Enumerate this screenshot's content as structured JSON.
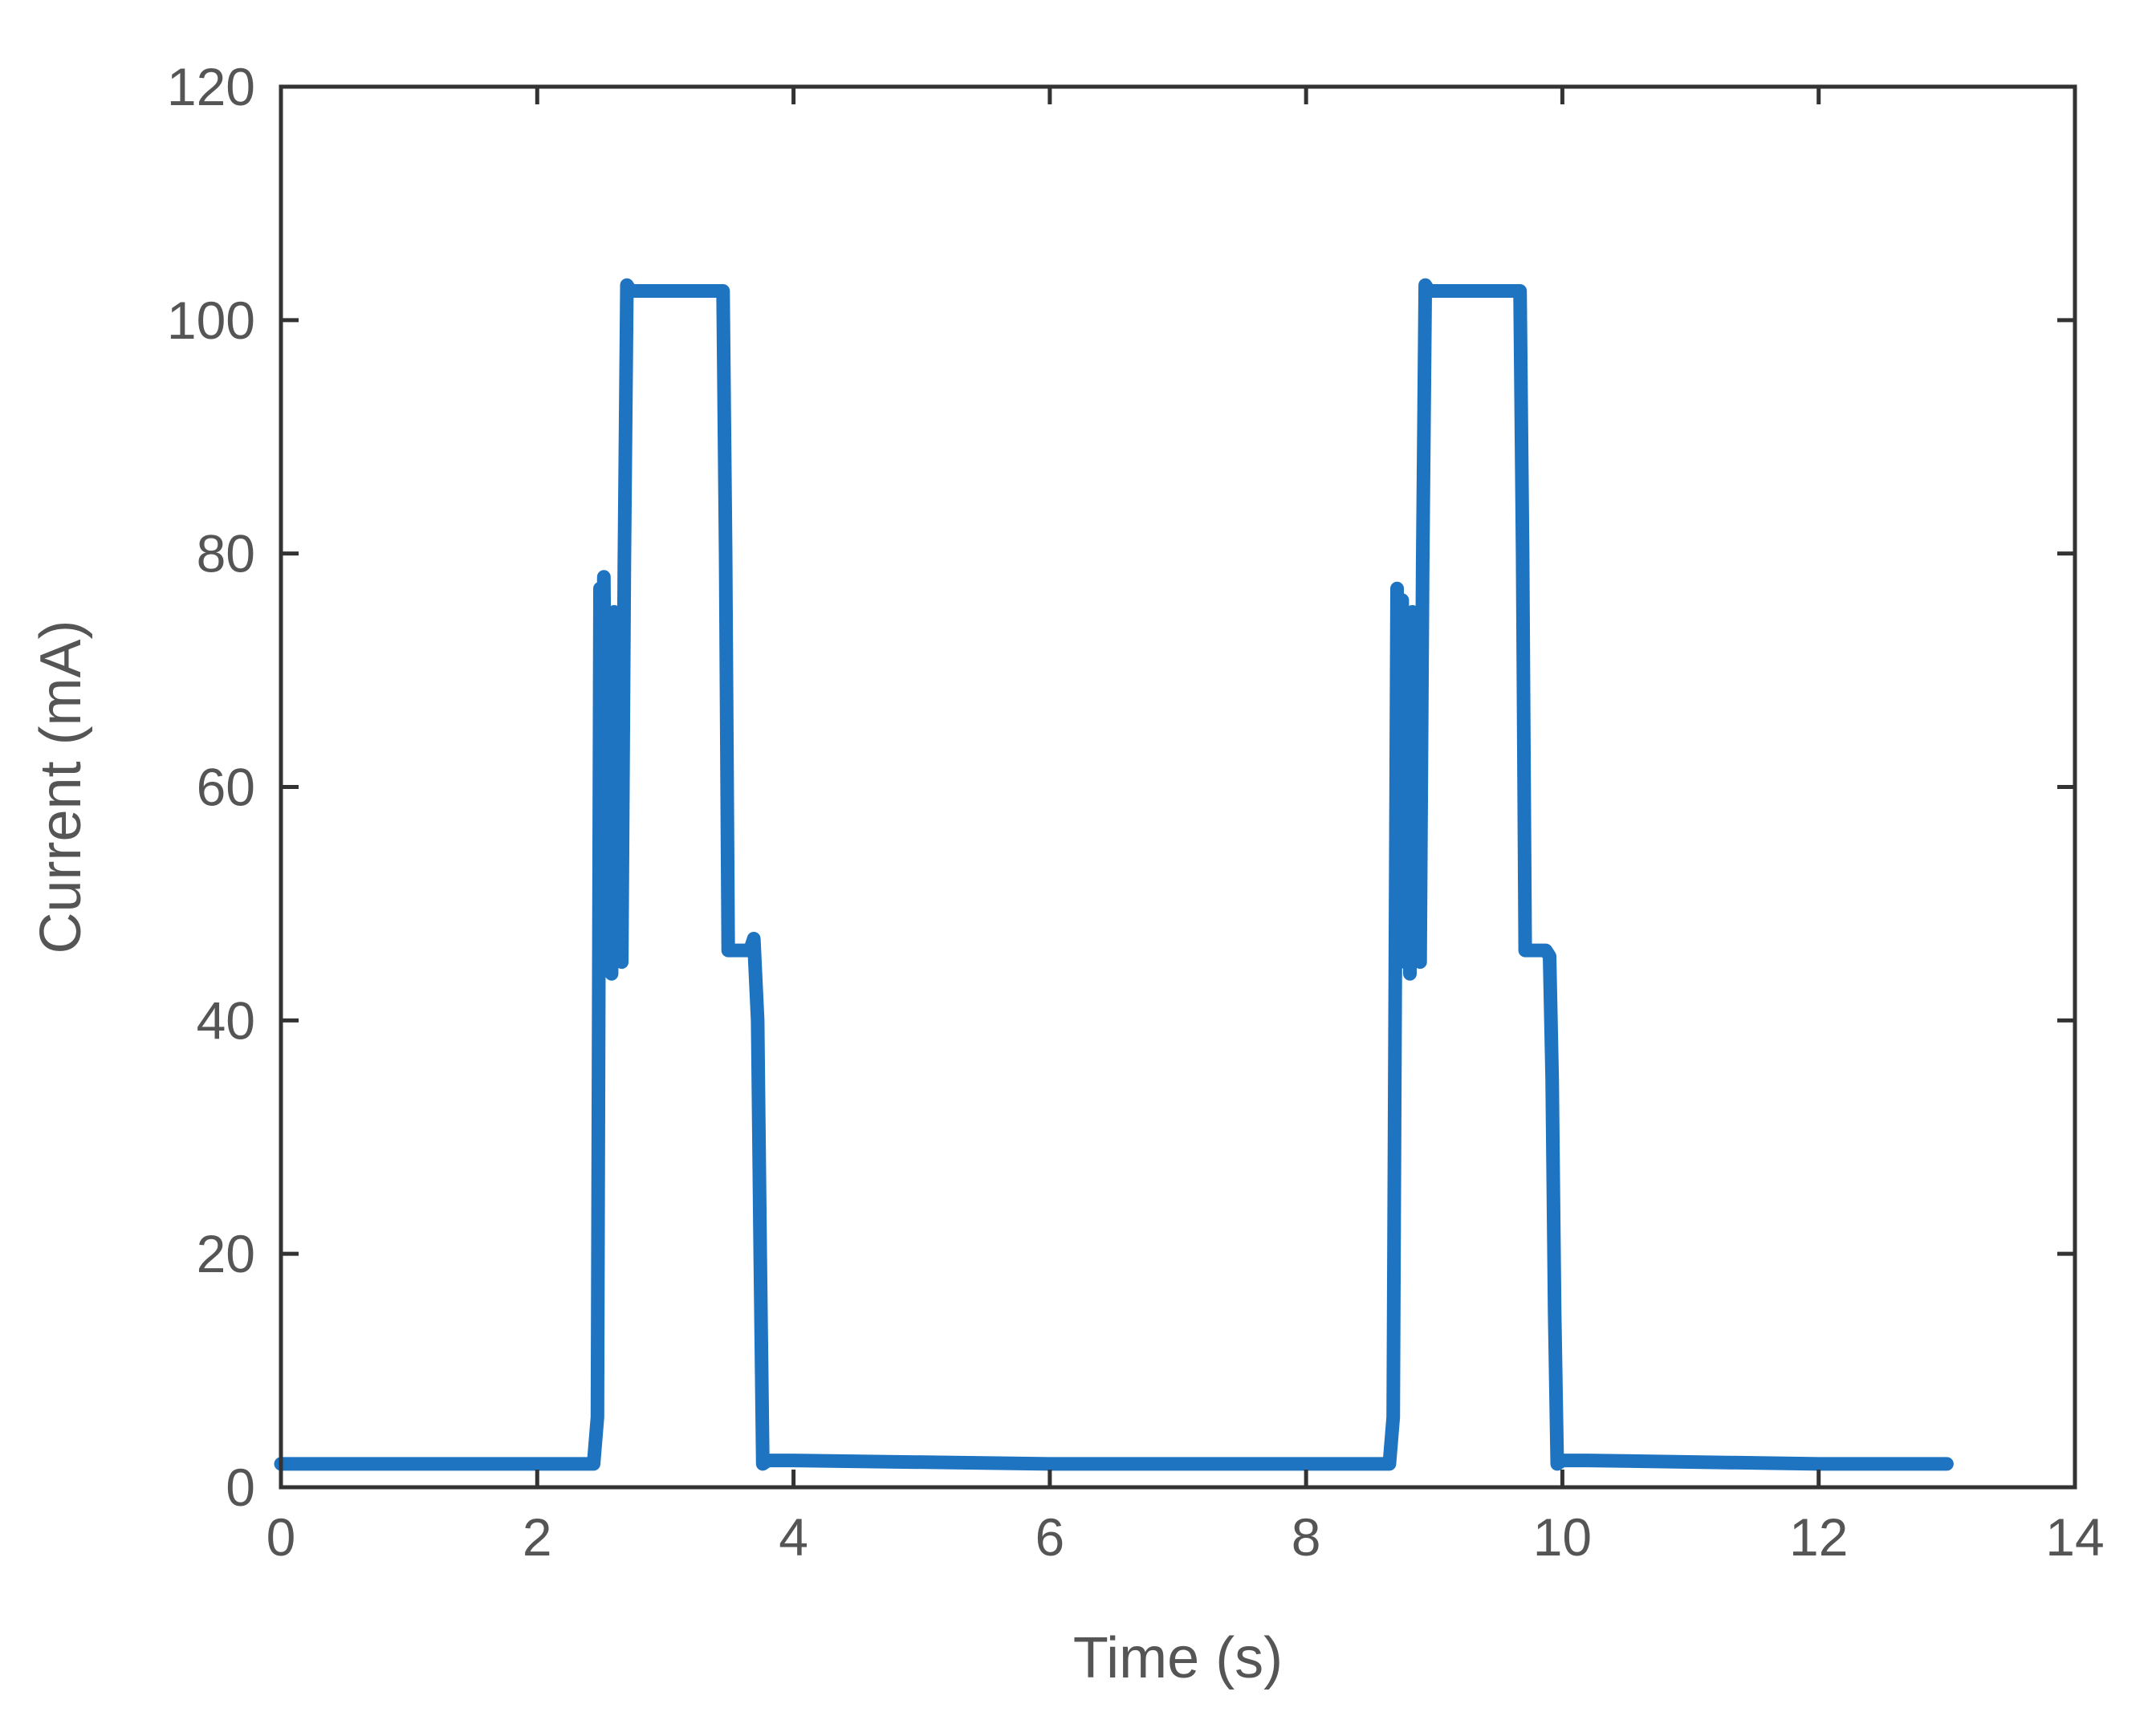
{
  "chart_data": {
    "type": "line",
    "title": "",
    "xlabel": "Time (s)",
    "ylabel": "Current (mA)",
    "xlim": [
      0,
      14
    ],
    "ylim": [
      0,
      120
    ],
    "xticks": [
      0,
      2,
      4,
      6,
      8,
      10,
      12,
      14
    ],
    "yticks": [
      0,
      20,
      40,
      60,
      80,
      100,
      120
    ],
    "xtick_labels": [
      "0",
      "2",
      "4",
      "6",
      "8",
      "10",
      "12",
      "14"
    ],
    "ytick_labels": [
      "0",
      "20",
      "40",
      "60",
      "80",
      "100",
      "120"
    ],
    "grid": false,
    "legend": "none",
    "colors": {
      "series": "#1f74c2",
      "axes": "#333333",
      "text": "#555555"
    },
    "series": [
      {
        "x": [
          0,
          2.44,
          2.47,
          2.49,
          2.5,
          2.52,
          2.54,
          2.56,
          2.58,
          2.6,
          2.62,
          2.64,
          2.66,
          2.68,
          2.7,
          2.73,
          3.0,
          3.2,
          3.45,
          3.47,
          3.49,
          3.6,
          3.66,
          3.69,
          3.72,
          3.74,
          3.76,
          3.8,
          4.0,
          6.0,
          8.0,
          8.65,
          8.68,
          8.71,
          8.73,
          8.75,
          8.77,
          8.79,
          8.81,
          8.83,
          8.85,
          8.87,
          8.89,
          8.91,
          8.93,
          8.96,
          9.2,
          9.5,
          9.67,
          9.69,
          9.71,
          9.8,
          9.87,
          9.9,
          9.92,
          9.94,
          9.96,
          10.0,
          10.2,
          12.0,
          13.0
        ],
        "y": [
          2,
          2,
          6,
          77,
          46,
          78,
          45,
          70,
          44,
          75,
          46,
          72,
          45,
          79,
          103,
          102.5,
          102.5,
          102.5,
          102.5,
          80,
          46,
          46,
          46,
          47,
          40,
          20,
          2,
          2.3,
          2.3,
          2,
          2,
          2,
          6,
          77,
          46,
          76,
          45,
          70,
          44,
          75,
          46,
          72,
          45,
          79,
          103,
          102.5,
          102.5,
          102.5,
          102.5,
          80,
          46,
          46,
          46,
          45.5,
          35,
          15,
          2,
          2.3,
          2.3,
          2,
          2
        ]
      }
    ]
  }
}
